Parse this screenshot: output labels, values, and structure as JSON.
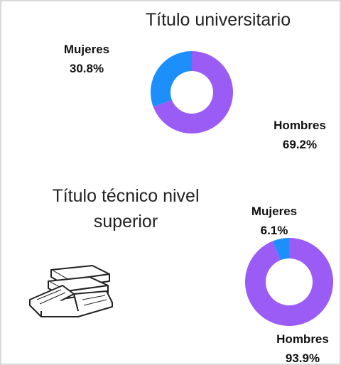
{
  "chart_data": [
    {
      "type": "donut",
      "title": "Título universitario",
      "categories": [
        "Mujeres",
        "Hombres"
      ],
      "values": [
        30.8,
        69.2
      ],
      "value_labels": [
        "30.8%",
        "69.2%"
      ],
      "colors": [
        "#1c8ffb",
        "#9b5cf6"
      ]
    },
    {
      "type": "donut",
      "title": "Título técnico nivel superior",
      "categories": [
        "Mujeres",
        "Hombres"
      ],
      "values": [
        6.1,
        93.9
      ],
      "value_labels": [
        "6.1%",
        "93.9%"
      ],
      "colors": [
        "#1c8ffb",
        "#9b5cf6"
      ]
    }
  ]
}
